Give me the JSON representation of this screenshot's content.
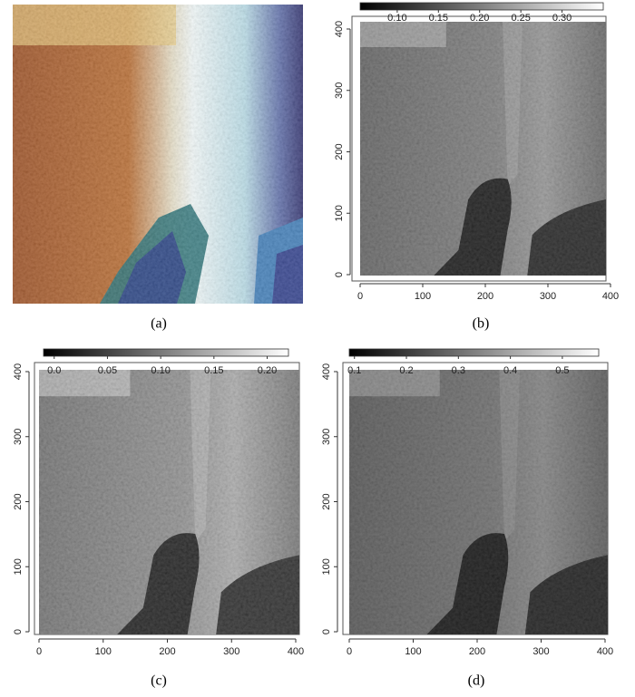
{
  "panels": [
    {
      "caption": "(a)"
    },
    {
      "caption": "(b)",
      "xlim": [
        0,
        400
      ],
      "ylim": [
        0,
        400
      ],
      "xticks": [
        0,
        100,
        200,
        300,
        400
      ],
      "yticks": [
        0,
        100,
        200,
        300,
        400
      ],
      "clim": [
        0.055,
        0.35
      ],
      "colorbar_ticks": [
        {
          "value": 0.1,
          "label": "0.10"
        },
        {
          "value": 0.15,
          "label": "0.15"
        },
        {
          "value": 0.2,
          "label": "0.20"
        },
        {
          "value": 0.25,
          "label": "0.25"
        },
        {
          "value": 0.3,
          "label": "0.30"
        }
      ]
    },
    {
      "caption": "(c)",
      "xlim": [
        0,
        400
      ],
      "ylim": [
        0,
        400
      ],
      "xticks": [
        0,
        100,
        200,
        300,
        400
      ],
      "yticks": [
        0,
        100,
        200,
        300,
        400
      ],
      "clim": [
        -0.01,
        0.22
      ],
      "colorbar_ticks": [
        {
          "value": 0,
          "label": "0.0"
        },
        0.05,
        {
          "value": 0.1,
          "label": "0.10"
        },
        0.15,
        {
          "value": 0.2,
          "label": "0.20"
        }
      ]
    },
    {
      "caption": "(d)",
      "xlim": [
        0,
        400
      ],
      "ylim": [
        0,
        400
      ],
      "xticks": [
        0,
        100,
        200,
        300,
        400
      ],
      "yticks": [
        0,
        100,
        200,
        300,
        400
      ],
      "clim": [
        0.09,
        0.57
      ],
      "colorbar_ticks": [
        0.1,
        0.2,
        0.3,
        0.4,
        0.5
      ]
    }
  ]
}
